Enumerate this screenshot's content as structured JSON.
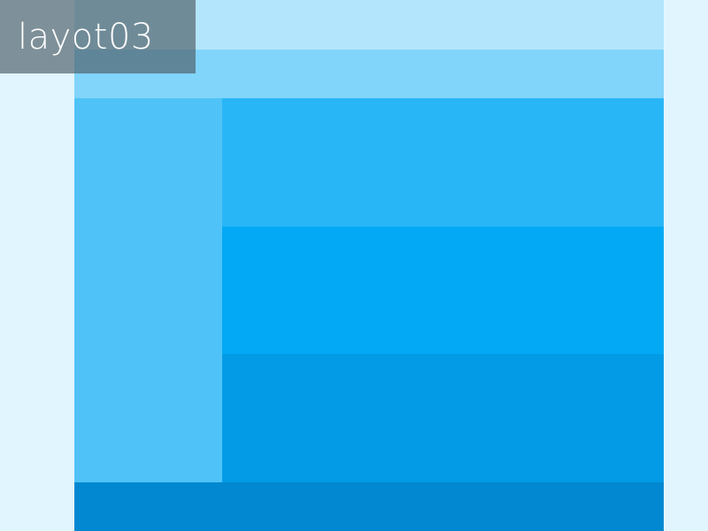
{
  "label": {
    "text": "layot03"
  },
  "colors": {
    "page_background": "#E1F5FE",
    "header_top": "#B3E5FC",
    "header_nav": "#81D4FA",
    "sidebar": "#4FC3F7",
    "panel_1": "#29B6F6",
    "panel_2": "#03A9F4",
    "panel_3": "#039BE5",
    "footer": "#0288D1",
    "label_background": "rgba(80,96,105,0.68)",
    "label_text": "#FFFFFF"
  }
}
